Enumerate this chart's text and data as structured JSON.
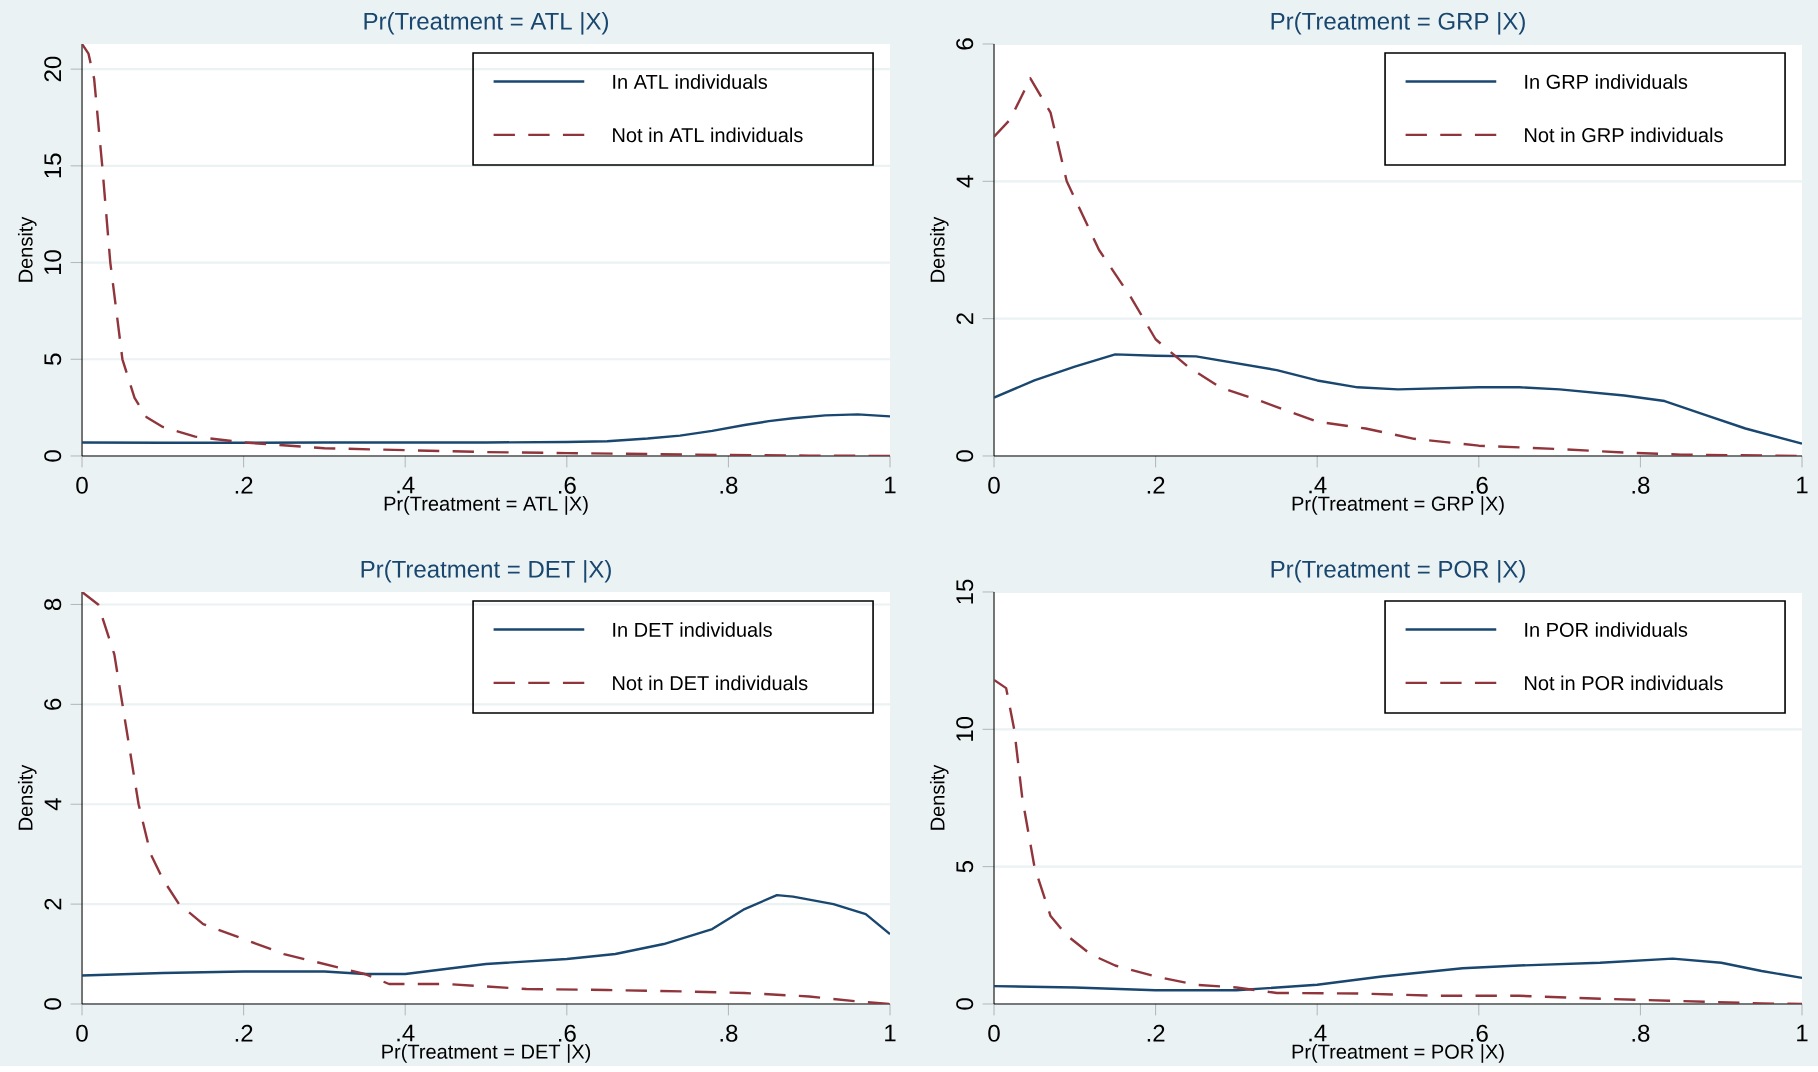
{
  "chart_data": [
    {
      "type": "line",
      "title": "Pr(Treatment = ATL |X)",
      "xlabel": "Pr(Treatment = ATL |X)",
      "ylabel": "Density",
      "xlim": [
        0,
        1
      ],
      "ylim": [
        0,
        21.3
      ],
      "xticks": [
        0,
        {
          "value": 0.2,
          "label": ".2"
        },
        {
          "value": 0.4,
          "label": ".4"
        },
        {
          "value": 0.6,
          "label": ".6"
        },
        {
          "value": 0.8,
          "label": ".8"
        },
        1
      ],
      "yticks": [
        0,
        5,
        10,
        15,
        20
      ],
      "grid": "y",
      "legend": "top right",
      "marker": "none",
      "series": [
        {
          "name": "In ATL individuals",
          "color": "#1a476f",
          "line_style": "solid",
          "x": [
            0,
            0.1,
            0.2,
            0.3,
            0.4,
            0.5,
            0.6,
            0.65,
            0.7,
            0.74,
            0.78,
            0.82,
            0.85,
            0.88,
            0.92,
            0.96,
            1
          ],
          "values": [
            0.7,
            0.68,
            0.68,
            0.7,
            0.7,
            0.7,
            0.72,
            0.76,
            0.9,
            1.05,
            1.3,
            1.6,
            1.8,
            1.95,
            2.1,
            2.15,
            2.05
          ]
        },
        {
          "name": "Not in ATL individuals",
          "color": "#90353b",
          "line_style": "dashed",
          "x": [
            0,
            0.008,
            0.015,
            0.025,
            0.035,
            0.05,
            0.065,
            0.08,
            0.1,
            0.14,
            0.2,
            0.3,
            0.4,
            0.5,
            0.6,
            0.7,
            0.8,
            0.9,
            1
          ],
          "values": [
            21.3,
            20.8,
            19.5,
            15,
            10,
            5,
            3,
            2,
            1.5,
            1.0,
            0.7,
            0.4,
            0.3,
            0.2,
            0.15,
            0.1,
            0.05,
            0.02,
            0
          ]
        }
      ]
    },
    {
      "type": "line",
      "title": "Pr(Treatment = GRP |X)",
      "xlabel": "Pr(Treatment = GRP |X)",
      "ylabel": "Density",
      "xlim": [
        0,
        1
      ],
      "ylim": [
        0,
        6
      ],
      "xticks": [
        0,
        {
          "value": 0.2,
          "label": ".2"
        },
        {
          "value": 0.4,
          "label": ".4"
        },
        {
          "value": 0.6,
          "label": ".6"
        },
        {
          "value": 0.8,
          "label": ".8"
        },
        1
      ],
      "yticks": [
        0,
        2,
        4,
        6
      ],
      "grid": "y",
      "legend": "top right",
      "marker": "none",
      "series": [
        {
          "name": "In GRP individuals",
          "color": "#1a476f",
          "line_style": "solid",
          "x": [
            0,
            0.05,
            0.1,
            0.15,
            0.2,
            0.25,
            0.3,
            0.35,
            0.4,
            0.45,
            0.5,
            0.6,
            0.65,
            0.7,
            0.78,
            0.83,
            0.88,
            0.93,
            1
          ],
          "values": [
            0.85,
            1.1,
            1.3,
            1.48,
            1.46,
            1.45,
            1.35,
            1.25,
            1.1,
            1.0,
            0.97,
            1.0,
            1.0,
            0.97,
            0.88,
            0.8,
            0.6,
            0.4,
            0.18
          ]
        },
        {
          "name": "Not in GRP individuals",
          "color": "#90353b",
          "line_style": "dashed",
          "x": [
            0,
            0.02,
            0.045,
            0.07,
            0.09,
            0.13,
            0.17,
            0.2,
            0.24,
            0.28,
            0.33,
            0.4,
            0.46,
            0.52,
            0.6,
            0.7,
            0.78,
            0.85,
            1
          ],
          "values": [
            4.65,
            4.9,
            5.5,
            5.0,
            4.0,
            3.0,
            2.3,
            1.7,
            1.3,
            1.0,
            0.8,
            0.5,
            0.4,
            0.25,
            0.15,
            0.1,
            0.05,
            0.02,
            0
          ]
        }
      ]
    },
    {
      "type": "line",
      "title": "Pr(Treatment = DET |X)",
      "xlabel": "Pr(Treatment = DET |X)",
      "ylabel": "Density",
      "xlim": [
        0,
        1
      ],
      "ylim": [
        0,
        8.25
      ],
      "xticks": [
        0,
        {
          "value": 0.2,
          "label": ".2"
        },
        {
          "value": 0.4,
          "label": ".4"
        },
        {
          "value": 0.6,
          "label": ".6"
        },
        {
          "value": 0.8,
          "label": ".8"
        },
        1
      ],
      "yticks": [
        0,
        2,
        4,
        6,
        8
      ],
      "grid": "y",
      "legend": "top right",
      "marker": "none",
      "series": [
        {
          "name": "In DET individuals",
          "color": "#1a476f",
          "line_style": "solid",
          "x": [
            0,
            0.1,
            0.2,
            0.3,
            0.35,
            0.4,
            0.45,
            0.5,
            0.6,
            0.66,
            0.72,
            0.78,
            0.82,
            0.86,
            0.88,
            0.93,
            0.97,
            1
          ],
          "values": [
            0.57,
            0.62,
            0.65,
            0.65,
            0.6,
            0.6,
            0.7,
            0.8,
            0.9,
            1.0,
            1.2,
            1.5,
            1.9,
            2.18,
            2.15,
            2.0,
            1.8,
            1.4
          ]
        },
        {
          "name": "Not in DET individuals",
          "color": "#90353b",
          "line_style": "dashed",
          "x": [
            0,
            0.02,
            0.04,
            0.055,
            0.07,
            0.085,
            0.1,
            0.12,
            0.15,
            0.2,
            0.25,
            0.3,
            0.35,
            0.38,
            0.45,
            0.55,
            0.65,
            0.75,
            0.82,
            0.9,
            0.96,
            1
          ],
          "values": [
            8.25,
            8.0,
            7.0,
            5.5,
            4.0,
            3.0,
            2.5,
            2.0,
            1.6,
            1.3,
            1.0,
            0.8,
            0.6,
            0.4,
            0.4,
            0.3,
            0.28,
            0.25,
            0.22,
            0.15,
            0.05,
            0
          ]
        }
      ]
    },
    {
      "type": "line",
      "title": "Pr(Treatment = POR |X)",
      "xlabel": "Pr(Treatment = POR |X)",
      "ylabel": "Density",
      "xlim": [
        0,
        1
      ],
      "ylim": [
        0,
        15
      ],
      "xticks": [
        0,
        {
          "value": 0.2,
          "label": ".2"
        },
        {
          "value": 0.4,
          "label": ".4"
        },
        {
          "value": 0.6,
          "label": ".6"
        },
        {
          "value": 0.8,
          "label": ".8"
        },
        1
      ],
      "yticks": [
        0,
        5,
        10,
        15
      ],
      "grid": "y",
      "legend": "top right",
      "marker": "none",
      "series": [
        {
          "name": "In POR individuals",
          "color": "#1a476f",
          "line_style": "solid",
          "x": [
            0,
            0.1,
            0.2,
            0.3,
            0.4,
            0.48,
            0.58,
            0.65,
            0.75,
            0.84,
            0.9,
            0.95,
            1
          ],
          "values": [
            0.65,
            0.6,
            0.5,
            0.5,
            0.7,
            1.0,
            1.3,
            1.4,
            1.5,
            1.65,
            1.5,
            1.2,
            0.95
          ]
        },
        {
          "name": "Not in POR individuals",
          "color": "#90353b",
          "line_style": "dashed",
          "x": [
            0,
            0.015,
            0.025,
            0.035,
            0.05,
            0.07,
            0.09,
            0.12,
            0.15,
            0.2,
            0.25,
            0.3,
            0.35,
            0.45,
            0.55,
            0.65,
            0.72,
            0.8,
            0.88,
            0.95,
            1
          ],
          "values": [
            11.8,
            11.5,
            10,
            7.5,
            5,
            3.2,
            2.5,
            1.8,
            1.4,
            1.0,
            0.7,
            0.6,
            0.4,
            0.38,
            0.3,
            0.3,
            0.22,
            0.15,
            0.08,
            0.02,
            0
          ]
        }
      ]
    }
  ]
}
